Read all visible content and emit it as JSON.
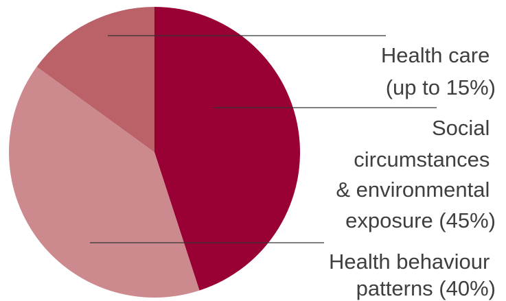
{
  "chart_data": {
    "type": "pie",
    "title": "",
    "start_angle": "12 o'clock",
    "direction": "clockwise",
    "order": [
      "Social circumstances & environmental exposure",
      "Health behaviour patterns",
      "Health care"
    ],
    "series": [
      {
        "slices": [
          {
            "key": "social",
            "value": 45,
            "color": "#990033",
            "label_lines": [
              "Social",
              "circumstances",
              "& environmental",
              "exposure (45%)"
            ]
          },
          {
            "key": "behaviour",
            "value": 40,
            "color": "#cc8a8f",
            "label_lines": [
              "Health behaviour",
              "patterns (40%)"
            ]
          },
          {
            "key": "care",
            "value": 15,
            "color": "#bb6168",
            "label_lines": [
              "Health care",
              "(up to 15%)"
            ]
          }
        ]
      }
    ],
    "legend": "callout labels at right with leader lines"
  }
}
